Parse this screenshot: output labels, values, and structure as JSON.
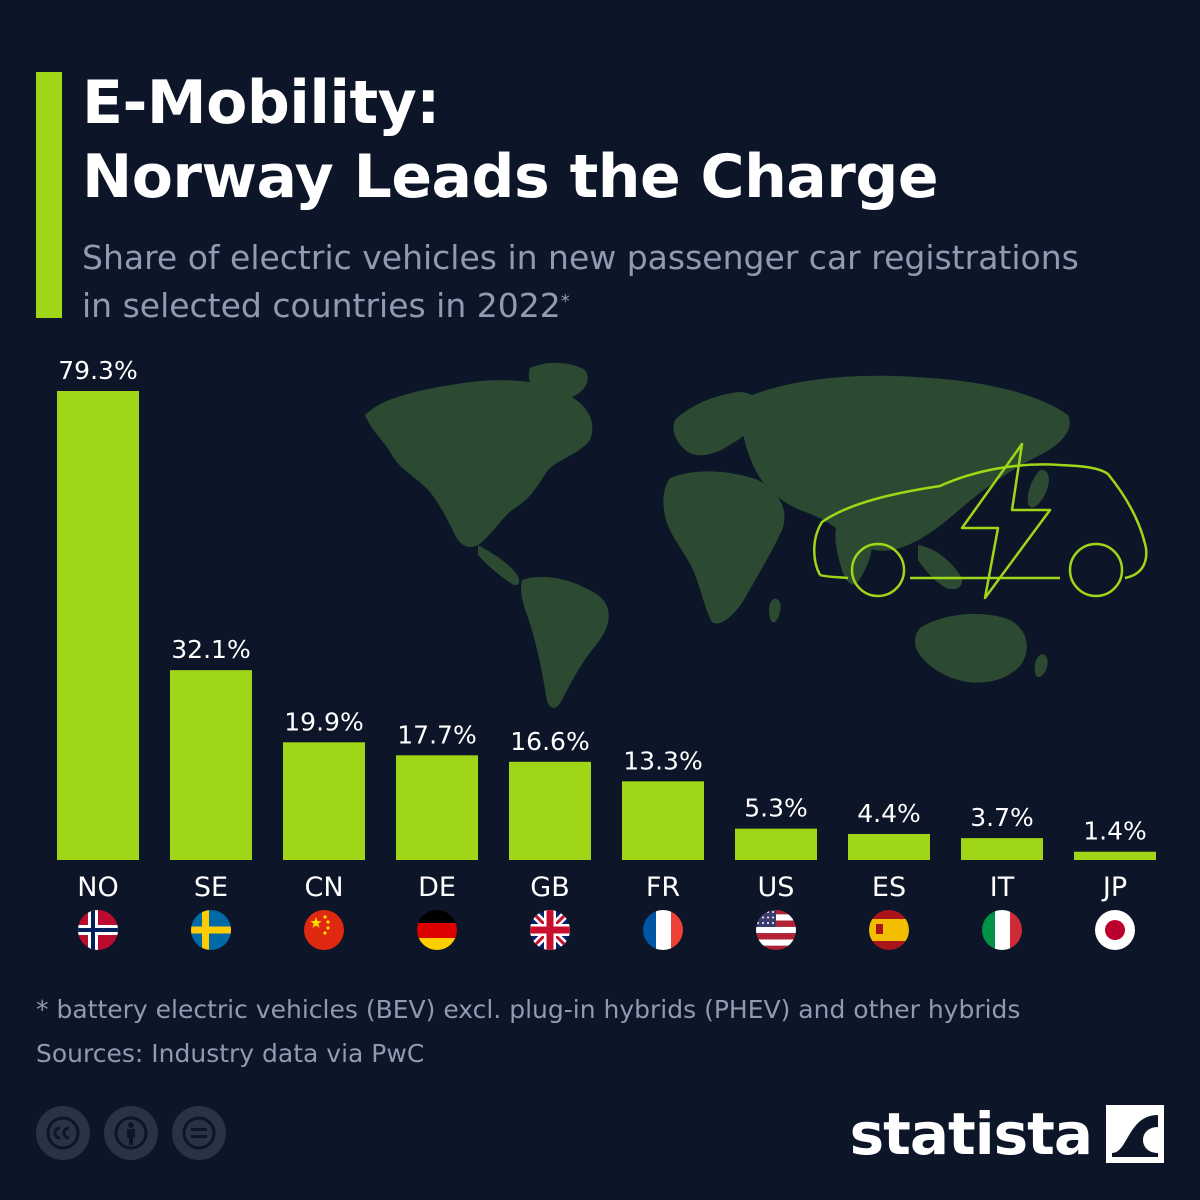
{
  "header": {
    "title_line1": "E-Mobility:",
    "title_line2": "Norway Leads the Charge",
    "subtitle_line1": "Share of electric vehicles in new passenger car registrations",
    "subtitle_line2": "in selected countries in 2022",
    "subtitle_marker": "*"
  },
  "chart_data": {
    "type": "bar",
    "categories": [
      "NO",
      "SE",
      "CN",
      "DE",
      "GB",
      "FR",
      "US",
      "ES",
      "IT",
      "JP"
    ],
    "values": [
      79.3,
      32.1,
      19.9,
      17.7,
      16.6,
      13.3,
      5.3,
      4.4,
      3.7,
      1.4
    ],
    "value_labels": [
      "79.3%",
      "32.1%",
      "19.9%",
      "17.7%",
      "16.6%",
      "13.3%",
      "5.3%",
      "4.4%",
      "3.7%",
      "1.4%"
    ],
    "ylim": [
      0,
      79.3
    ],
    "grid": false,
    "legend": "none",
    "bar_color": "#9fd617"
  },
  "footer": {
    "note": "* battery electric vehicles (BEV) excl. plug-in hybrids (PHEV) and other hybrids",
    "source": "Sources: Industry data via PwC",
    "brand": "statista",
    "license_icons": [
      "cc-icon",
      "attribution-icon",
      "no-derivatives-icon"
    ]
  },
  "colors": {
    "background": "#0d1528",
    "accent": "#9fd617",
    "map": "#2c4a31",
    "muted_text": "#8f9bb0"
  }
}
